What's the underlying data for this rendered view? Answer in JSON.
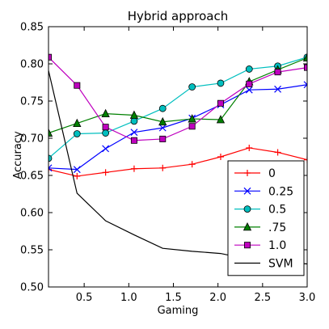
{
  "chart_data": {
    "type": "line",
    "title": "Hybrid approach",
    "xlabel": "Gaming",
    "ylabel": "Accuracy",
    "xlim": [
      0.1,
      3.0
    ],
    "ylim": [
      0.5,
      0.85
    ],
    "x_ticks": [
      "0.5",
      "1.0",
      "1.5",
      "2.0",
      "2.5",
      "3.0"
    ],
    "y_ticks": [
      "0.50",
      "0.55",
      "0.60",
      "0.65",
      "0.70",
      "0.75",
      "0.80",
      "0.85"
    ],
    "grid": false,
    "legend_position": "bottom-right",
    "x": [
      0.1,
      0.42,
      0.74,
      1.06,
      1.38,
      1.71,
      2.03,
      2.35,
      2.67,
      3.0
    ],
    "series": [
      {
        "name": "0",
        "color": "#ff0000",
        "marker": "plus",
        "values": [
          0.658,
          0.649,
          0.654,
          0.659,
          0.66,
          0.665,
          0.675,
          0.687,
          0.681,
          0.671
        ]
      },
      {
        "name": "0.25",
        "color": "#0000ff",
        "marker": "x",
        "values": [
          0.66,
          0.658,
          0.686,
          0.708,
          0.714,
          0.727,
          0.745,
          0.765,
          0.766,
          0.772
        ]
      },
      {
        "name": "0.5",
        "color": "#00bfbf",
        "marker": "circle",
        "values": [
          0.673,
          0.706,
          0.707,
          0.723,
          0.74,
          0.769,
          0.774,
          0.793,
          0.797,
          0.809
        ]
      },
      {
        "name": ".75",
        "color": "#008000",
        "marker": "triangle",
        "values": [
          0.707,
          0.72,
          0.733,
          0.731,
          0.722,
          0.726,
          0.725,
          0.776,
          0.792,
          0.808
        ]
      },
      {
        "name": "1.0",
        "color": "#bf00bf",
        "marker": "square",
        "values": [
          0.809,
          0.771,
          0.715,
          0.697,
          0.699,
          0.716,
          0.747,
          0.773,
          0.789,
          0.795
        ]
      },
      {
        "name": "SVM",
        "color": "#000000",
        "marker": "none",
        "values": [
          0.791,
          0.626,
          0.589,
          0.57,
          0.552,
          0.548,
          0.545,
          0.537,
          0.534,
          0.531
        ]
      }
    ]
  }
}
